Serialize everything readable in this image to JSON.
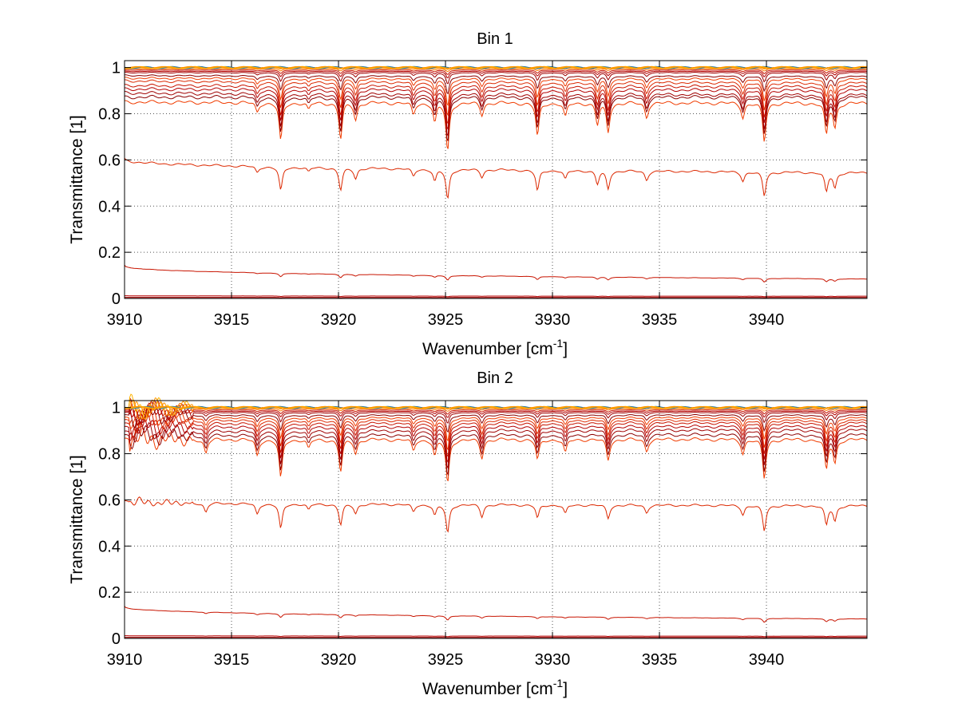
{
  "figure": {
    "background": "#ffffff",
    "line_colors": [
      "#8b0000",
      "#a00000",
      "#b40000",
      "#c81400",
      "#dc2800",
      "#f03c00",
      "#ff5a00",
      "#ff7800",
      "#ff9600",
      "#ffb400",
      "#1f77b4"
    ]
  },
  "chart_data": [
    {
      "type": "line",
      "title": "Bin 1",
      "xlabel": "Wavenumber [cm",
      "xlabel_exponent": "-1",
      "xlabel_close": "]",
      "ylabel": "Transmittance [1]",
      "xlim": [
        3910,
        3944.7
      ],
      "ylim": [
        0,
        1.03
      ],
      "xticks": [
        3910,
        3915,
        3920,
        3925,
        3930,
        3935,
        3940
      ],
      "xtick_labels": [
        "3910",
        "3915",
        "3920",
        "3925",
        "3930",
        "3935",
        "3940"
      ],
      "yticks": [
        0,
        0.2,
        0.4,
        0.6,
        0.8,
        1
      ],
      "ytick_labels": [
        "0",
        "0.2",
        "0.4",
        "0.6",
        "0.8",
        "1"
      ],
      "grid": true,
      "absorption_lines": [
        {
          "x": 3916.2,
          "depth": 0.2
        },
        {
          "x": 3917.3,
          "depth": 0.8
        },
        {
          "x": 3918.6,
          "depth": 0.15
        },
        {
          "x": 3920.1,
          "depth": 0.75
        },
        {
          "x": 3920.8,
          "depth": 0.35
        },
        {
          "x": 3923.5,
          "depth": 0.25
        },
        {
          "x": 3924.5,
          "depth": 0.4
        },
        {
          "x": 3925.1,
          "depth": 1.0
        },
        {
          "x": 3926.7,
          "depth": 0.25
        },
        {
          "x": 3929.3,
          "depth": 0.7
        },
        {
          "x": 3930.6,
          "depth": 0.3
        },
        {
          "x": 3932.1,
          "depth": 0.45
        },
        {
          "x": 3932.6,
          "depth": 0.6
        },
        {
          "x": 3934.4,
          "depth": 0.3
        },
        {
          "x": 3938.9,
          "depth": 0.3
        },
        {
          "x": 3939.9,
          "depth": 0.8
        },
        {
          "x": 3942.8,
          "depth": 0.65
        },
        {
          "x": 3943.2,
          "depth": 0.5
        }
      ],
      "noise_region": null,
      "series": [
        {
          "baseline_start": 1.0,
          "baseline_end": 1.0,
          "line_depth": 0.004
        },
        {
          "baseline_start": 1.0,
          "baseline_end": 1.0,
          "line_depth": 0.008
        },
        {
          "baseline_start": 0.995,
          "baseline_end": 0.995,
          "line_depth": 0.012
        },
        {
          "baseline_start": 0.99,
          "baseline_end": 0.99,
          "line_depth": 0.02
        },
        {
          "baseline_start": 0.985,
          "baseline_end": 0.985,
          "line_depth": 0.03
        },
        {
          "baseline_start": 0.98,
          "baseline_end": 0.98,
          "line_depth": 0.05
        },
        {
          "baseline_start": 0.97,
          "baseline_end": 0.965,
          "line_depth": 0.08
        },
        {
          "baseline_start": 0.96,
          "baseline_end": 0.955,
          "line_depth": 0.12
        },
        {
          "baseline_start": 0.95,
          "baseline_end": 0.94,
          "line_depth": 0.15
        },
        {
          "baseline_start": 0.93,
          "baseline_end": 0.925,
          "line_depth": 0.17
        },
        {
          "baseline_start": 0.915,
          "baseline_end": 0.91,
          "line_depth": 0.18
        },
        {
          "baseline_start": 0.9,
          "baseline_end": 0.89,
          "line_depth": 0.19
        },
        {
          "baseline_start": 0.88,
          "baseline_end": 0.88,
          "line_depth": 0.2
        },
        {
          "baseline_start": 0.86,
          "baseline_end": 0.855,
          "line_depth": 0.21
        },
        {
          "baseline_start": 0.61,
          "baseline_end": 0.55,
          "line_depth": 0.13
        },
        {
          "baseline_start": 0.145,
          "baseline_end": 0.085,
          "line_depth": 0.02
        },
        {
          "baseline_start": 0.012,
          "baseline_end": 0.01,
          "line_depth": 0.003
        },
        {
          "baseline_start": 0.005,
          "baseline_end": 0.005,
          "line_depth": 0.002
        },
        {
          "baseline_start": 0.001,
          "baseline_end": 0.001,
          "line_depth": 0.0
        }
      ]
    },
    {
      "type": "line",
      "title": "Bin 2",
      "xlabel": "Wavenumber [cm",
      "xlabel_exponent": "-1",
      "xlabel_close": "]",
      "ylabel": "Transmittance [1]",
      "xlim": [
        3910,
        3944.7
      ],
      "ylim": [
        0,
        1.03
      ],
      "xticks": [
        3910,
        3915,
        3920,
        3925,
        3930,
        3935,
        3940
      ],
      "xtick_labels": [
        "3910",
        "3915",
        "3920",
        "3925",
        "3930",
        "3935",
        "3940"
      ],
      "yticks": [
        0,
        0.2,
        0.4,
        0.6,
        0.8,
        1
      ],
      "ytick_labels": [
        "0",
        "0.2",
        "0.4",
        "0.6",
        "0.8",
        "1"
      ],
      "grid": true,
      "absorption_lines": [
        {
          "x": 3913.8,
          "depth": 0.3
        },
        {
          "x": 3916.2,
          "depth": 0.35
        },
        {
          "x": 3917.3,
          "depth": 0.85
        },
        {
          "x": 3918.6,
          "depth": 0.2
        },
        {
          "x": 3920.1,
          "depth": 0.7
        },
        {
          "x": 3920.8,
          "depth": 0.3
        },
        {
          "x": 3923.5,
          "depth": 0.25
        },
        {
          "x": 3924.5,
          "depth": 0.35
        },
        {
          "x": 3925.1,
          "depth": 0.95
        },
        {
          "x": 3926.7,
          "depth": 0.4
        },
        {
          "x": 3929.3,
          "depth": 0.45
        },
        {
          "x": 3930.6,
          "depth": 0.3
        },
        {
          "x": 3932.6,
          "depth": 0.45
        },
        {
          "x": 3934.4,
          "depth": 0.25
        },
        {
          "x": 3938.9,
          "depth": 0.3
        },
        {
          "x": 3939.9,
          "depth": 0.85
        },
        {
          "x": 3942.8,
          "depth": 0.65
        },
        {
          "x": 3943.2,
          "depth": 0.5
        }
      ],
      "noise_region": [
        3910.2,
        3913.2
      ],
      "series": [
        {
          "baseline_start": 1.0,
          "baseline_end": 1.0,
          "line_depth": 0.004
        },
        {
          "baseline_start": 1.0,
          "baseline_end": 1.0,
          "line_depth": 0.008
        },
        {
          "baseline_start": 0.995,
          "baseline_end": 0.995,
          "line_depth": 0.012
        },
        {
          "baseline_start": 0.99,
          "baseline_end": 0.99,
          "line_depth": 0.02
        },
        {
          "baseline_start": 0.985,
          "baseline_end": 0.985,
          "line_depth": 0.03
        },
        {
          "baseline_start": 0.98,
          "baseline_end": 0.98,
          "line_depth": 0.05
        },
        {
          "baseline_start": 0.97,
          "baseline_end": 0.97,
          "line_depth": 0.08
        },
        {
          "baseline_start": 0.96,
          "baseline_end": 0.96,
          "line_depth": 0.11
        },
        {
          "baseline_start": 0.95,
          "baseline_end": 0.95,
          "line_depth": 0.14
        },
        {
          "baseline_start": 0.935,
          "baseline_end": 0.94,
          "line_depth": 0.16
        },
        {
          "baseline_start": 0.92,
          "baseline_end": 0.925,
          "line_depth": 0.17
        },
        {
          "baseline_start": 0.9,
          "baseline_end": 0.91,
          "line_depth": 0.18
        },
        {
          "baseline_start": 0.885,
          "baseline_end": 0.89,
          "line_depth": 0.19
        },
        {
          "baseline_start": 0.87,
          "baseline_end": 0.87,
          "line_depth": 0.2
        },
        {
          "baseline_start": 0.6,
          "baseline_end": 0.58,
          "line_depth": 0.13
        },
        {
          "baseline_start": 0.14,
          "baseline_end": 0.085,
          "line_depth": 0.02
        },
        {
          "baseline_start": 0.012,
          "baseline_end": 0.01,
          "line_depth": 0.003
        },
        {
          "baseline_start": 0.005,
          "baseline_end": 0.005,
          "line_depth": 0.002
        },
        {
          "baseline_start": 0.001,
          "baseline_end": 0.001,
          "line_depth": 0.0
        }
      ]
    }
  ]
}
